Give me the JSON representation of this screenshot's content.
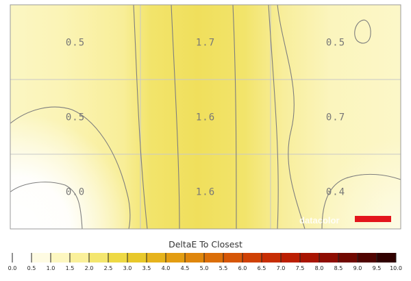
{
  "chart_data": {
    "type": "heatmap",
    "title": "DeltaE To Closest",
    "rows": 3,
    "cols": 3,
    "values": [
      [
        0.5,
        1.7,
        0.5
      ],
      [
        0.5,
        1.6,
        0.7
      ],
      [
        0.0,
        1.6,
        0.4
      ]
    ],
    "labels": [
      [
        "0.5",
        "1.7",
        "0.5"
      ],
      [
        "0.5",
        "1.6",
        "0.7"
      ],
      [
        "0.0",
        "1.6",
        "0.4"
      ]
    ],
    "scale": {
      "title": "DeltaE To Closest",
      "min": 0.0,
      "max": 10.0,
      "ticks": [
        "0.0",
        "0.5",
        "1.0",
        "1.5",
        "2.0",
        "2.5",
        "3.0",
        "3.5",
        "4.0",
        "4.5",
        "5.0",
        "5.5",
        "6.0",
        "6.5",
        "7.0",
        "7.5",
        "8.0",
        "8.5",
        "9.0",
        "9.5",
        "10.0"
      ],
      "colors": [
        "#ffffff",
        "#fefbe2",
        "#fdf7c0",
        "#faf09a",
        "#f4e66e",
        "#eed944",
        "#e8c82a",
        "#e6b31c",
        "#e39d12",
        "#df860c",
        "#db6e08",
        "#d65606",
        "#cf4004",
        "#c72d03",
        "#bb1e02",
        "#a81402",
        "#8e0d02",
        "#700801",
        "#500401",
        "#300100",
        "#000000"
      ]
    },
    "grid": true,
    "contours": true
  },
  "watermark": {
    "text": "datacolor",
    "bar_color": "#e3151c"
  },
  "colors": {
    "grid_line": "#c8c8c8",
    "contour_line": "#7d7d7d",
    "border": "#9a9a9a"
  }
}
